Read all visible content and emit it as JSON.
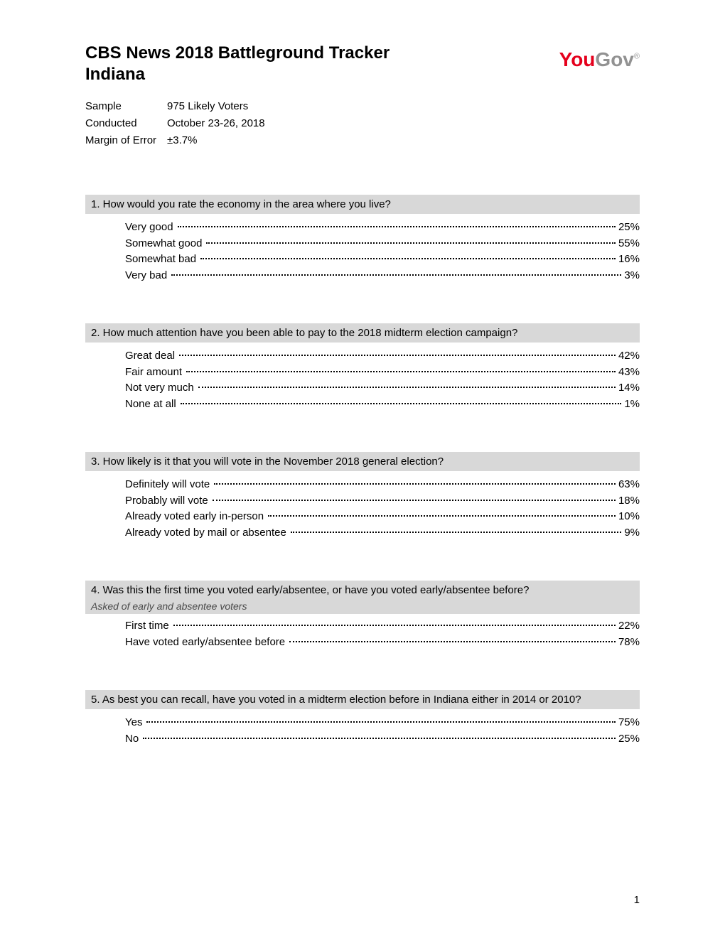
{
  "header": {
    "title_line1": "CBS News 2018 Battleground Tracker",
    "title_line2": "Indiana",
    "logo_you": "You",
    "logo_gov": "Gov"
  },
  "meta": {
    "sample_label": "Sample",
    "sample_value": "975 Likely Voters",
    "conducted_label": "Conducted",
    "conducted_value": "October 23-26, 2018",
    "moe_label": "Margin of Error",
    "moe_value": "±3.7%"
  },
  "questions": [
    {
      "number": "1.",
      "text": "How would you rate the economy in the area where you live?",
      "subnote": null,
      "responses": [
        {
          "label": "Very good",
          "value": "25%"
        },
        {
          "label": "Somewhat good",
          "value": "55%"
        },
        {
          "label": "Somewhat bad",
          "value": "16%"
        },
        {
          "label": "Very bad",
          "value": "3%"
        }
      ]
    },
    {
      "number": "2.",
      "text": "How much attention have you been able to pay to the 2018 midterm election campaign?",
      "subnote": null,
      "responses": [
        {
          "label": "Great deal",
          "value": "42%"
        },
        {
          "label": "Fair amount",
          "value": "43%"
        },
        {
          "label": "Not very much",
          "value": "14%"
        },
        {
          "label": "None at all",
          "value": "1%"
        }
      ]
    },
    {
      "number": "3.",
      "text": "How likely is it that you will vote in the November 2018 general election?",
      "subnote": null,
      "responses": [
        {
          "label": "Definitely will vote",
          "value": "63%"
        },
        {
          "label": "Probably will vote",
          "value": "18%"
        },
        {
          "label": "Already voted early in-person",
          "value": "10%"
        },
        {
          "label": "Already voted by mail or absentee",
          "value": "9%"
        }
      ]
    },
    {
      "number": "4.",
      "text": "Was this the first time you voted early/absentee, or have you voted early/absentee before?",
      "subnote": "Asked of early and absentee voters",
      "responses": [
        {
          "label": "First time",
          "value": "22%"
        },
        {
          "label": "Have voted early/absentee before",
          "value": "78%"
        }
      ]
    },
    {
      "number": "5.",
      "text": "As best you can recall, have you voted in a midterm election before in Indiana either in 2014 or 2010?",
      "subnote": null,
      "responses": [
        {
          "label": "Yes",
          "value": "75%"
        },
        {
          "label": "No",
          "value": "25%"
        }
      ]
    }
  ],
  "page_number": "1",
  "colors": {
    "question_bg": "#d8d8d8",
    "logo_red": "#e5001c",
    "logo_gray": "#929292",
    "text": "#000000",
    "background": "#ffffff"
  }
}
